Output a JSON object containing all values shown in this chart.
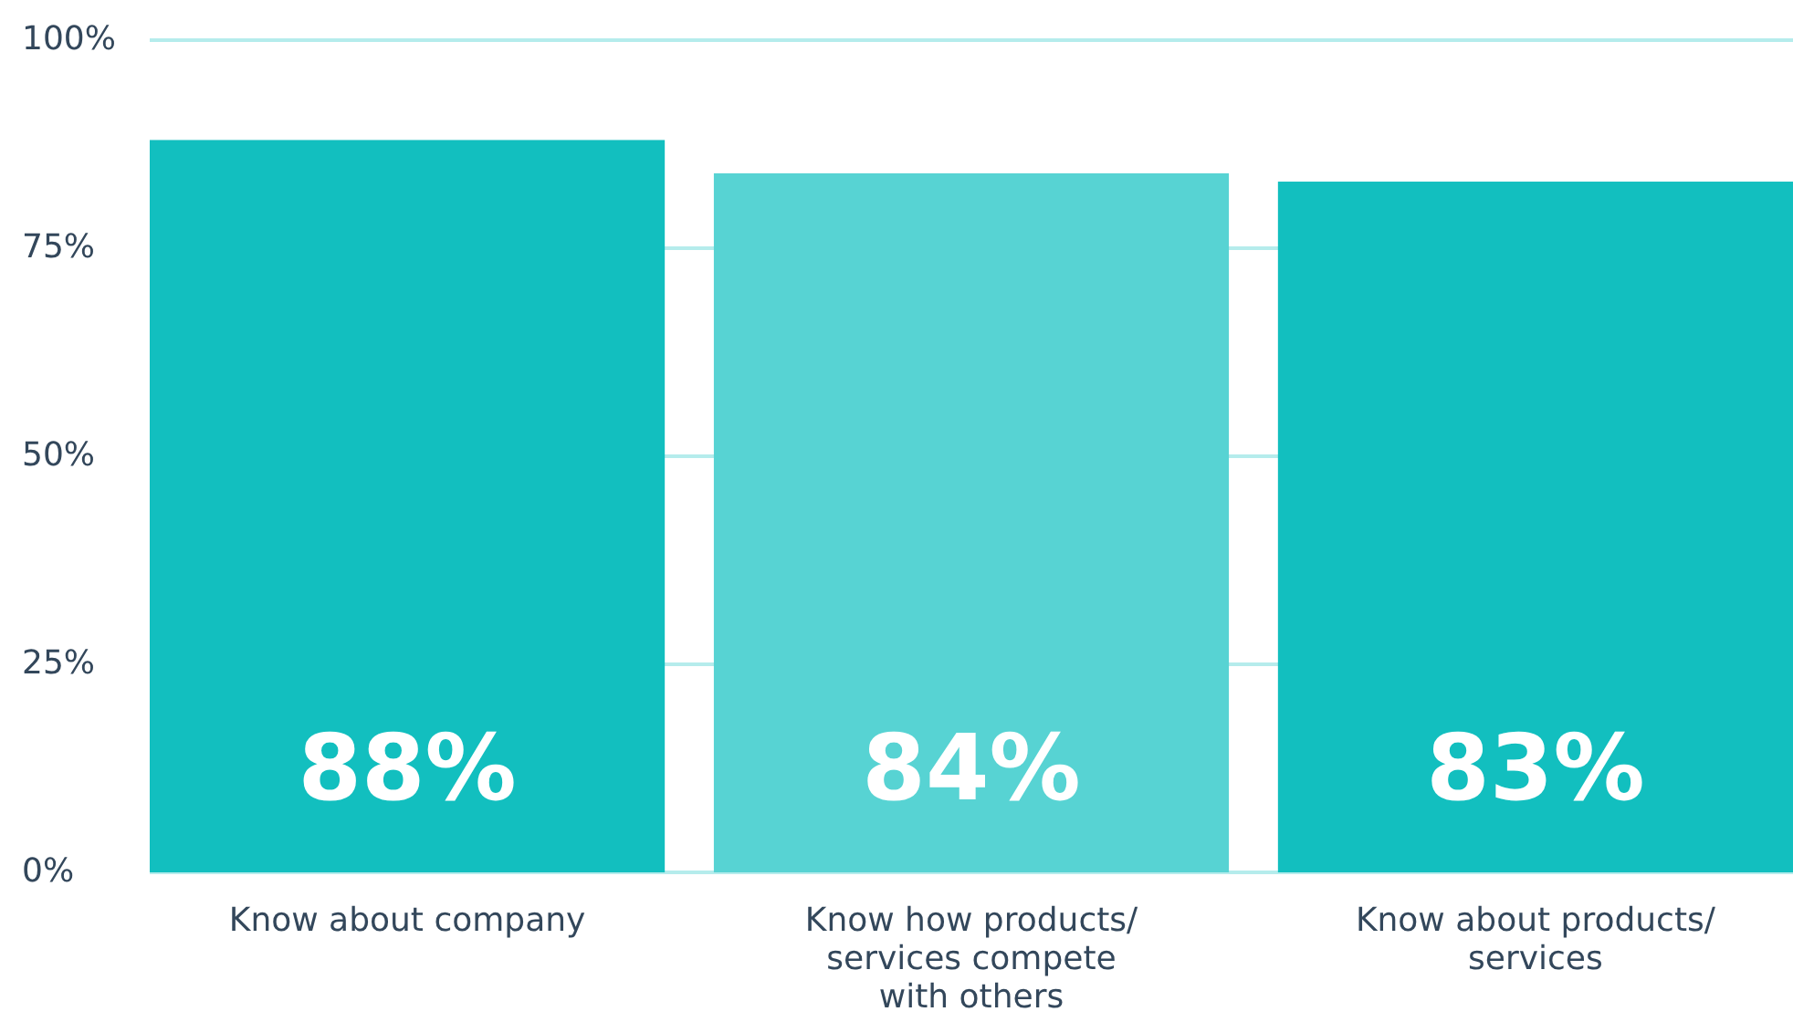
{
  "chart_data": {
    "type": "bar",
    "categories": [
      "Know about company",
      "Know how products/ services compete with others",
      "Know about products/ services"
    ],
    "values": [
      88,
      84,
      83
    ],
    "colors": [
      "#12bfbf",
      "#57d3d3",
      "#12bfbf"
    ],
    "ylim": [
      0,
      100
    ],
    "yticks": [
      {
        "value": 0,
        "label": "0%"
      },
      {
        "value": 25,
        "label": "25%"
      },
      {
        "value": 50,
        "label": "50%"
      },
      {
        "value": 75,
        "label": "75%"
      },
      {
        "value": 100,
        "label": "100%"
      }
    ],
    "value_labels": [
      "88%",
      "84%",
      "83%"
    ],
    "grid": "y"
  }
}
